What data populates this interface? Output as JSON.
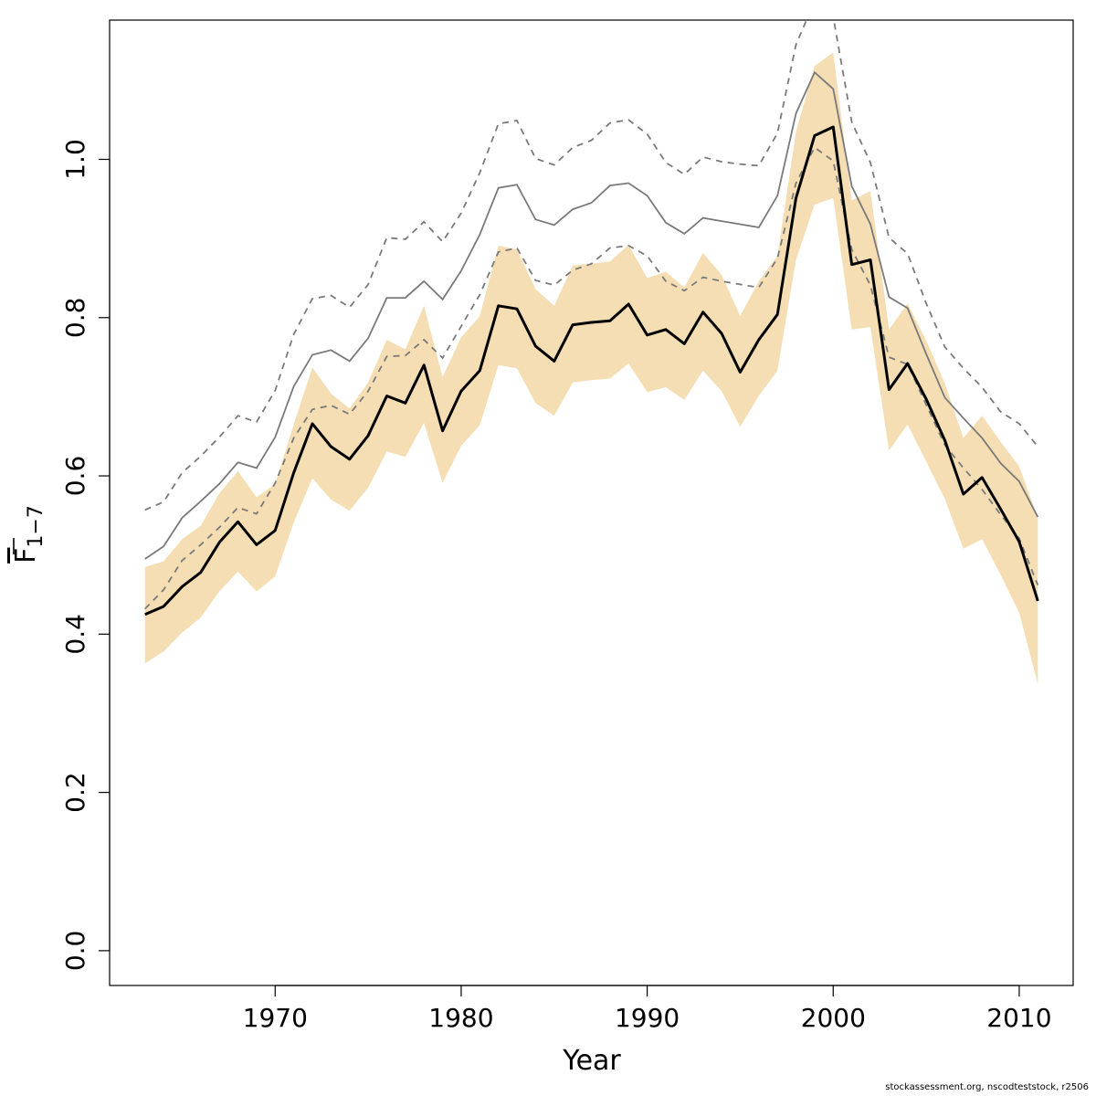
{
  "chart_data": {
    "type": "line",
    "xlabel": "Year",
    "ylabel_main": "F",
    "ylabel_sub": "1−7",
    "xlim": [
      1961.1,
      2012.9
    ],
    "ylim": [
      -0.044,
      1.176
    ],
    "x_ticks": [
      1970,
      1980,
      1990,
      2000,
      2010
    ],
    "y_ticks": [
      0.0,
      0.2,
      0.4,
      0.6,
      0.8,
      1.0
    ],
    "y_tick_labels": [
      "0.0",
      "0.2",
      "0.4",
      "0.6",
      "0.8",
      "1.0"
    ],
    "grid": false,
    "colors": {
      "band": "#f5deb3",
      "estimate": "#000000",
      "previous": "#7a7a7a",
      "previous_ci": "#7a7a7a"
    },
    "x": [
      1963,
      1964,
      1965,
      1966,
      1967,
      1968,
      1969,
      1970,
      1971,
      1972,
      1973,
      1974,
      1975,
      1976,
      1977,
      1978,
      1979,
      1980,
      1981,
      1982,
      1983,
      1984,
      1985,
      1986,
      1987,
      1988,
      1989,
      1990,
      1991,
      1992,
      1993,
      1994,
      1995,
      1996,
      1997,
      1998,
      1999,
      2000,
      2001,
      2002,
      2003,
      2004,
      2005,
      2006,
      2007,
      2008,
      2009,
      2010,
      2011
    ],
    "series": [
      {
        "role": "estimate",
        "values": [
          0.425,
          0.435,
          0.46,
          0.478,
          0.516,
          0.542,
          0.513,
          0.531,
          0.604,
          0.666,
          0.637,
          0.621,
          0.651,
          0.701,
          0.692,
          0.74,
          0.657,
          0.707,
          0.733,
          0.815,
          0.811,
          0.764,
          0.745,
          0.791,
          0.794,
          0.796,
          0.817,
          0.778,
          0.785,
          0.767,
          0.807,
          0.78,
          0.731,
          0.772,
          0.804,
          0.951,
          1.03,
          1.041,
          0.867,
          0.873,
          0.709,
          0.742,
          0.697,
          0.645,
          0.577,
          0.598,
          0.558,
          0.517,
          0.442
        ]
      },
      {
        "role": "band_upper",
        "values": [
          0.485,
          0.492,
          0.52,
          0.537,
          0.578,
          0.606,
          0.573,
          0.59,
          0.665,
          0.737,
          0.704,
          0.685,
          0.718,
          0.772,
          0.76,
          0.815,
          0.725,
          0.775,
          0.802,
          0.891,
          0.886,
          0.836,
          0.815,
          0.866,
          0.868,
          0.871,
          0.892,
          0.85,
          0.858,
          0.838,
          0.882,
          0.854,
          0.802,
          0.846,
          0.878,
          1.035,
          1.118,
          1.135,
          0.948,
          0.96,
          0.785,
          0.818,
          0.771,
          0.717,
          0.648,
          0.676,
          0.643,
          0.612,
          0.547
        ]
      },
      {
        "role": "band_lower",
        "values": [
          0.363,
          0.378,
          0.402,
          0.421,
          0.454,
          0.479,
          0.454,
          0.473,
          0.541,
          0.597,
          0.57,
          0.556,
          0.585,
          0.631,
          0.624,
          0.667,
          0.591,
          0.638,
          0.664,
          0.74,
          0.736,
          0.692,
          0.676,
          0.718,
          0.721,
          0.723,
          0.742,
          0.706,
          0.712,
          0.696,
          0.733,
          0.707,
          0.662,
          0.701,
          0.733,
          0.873,
          0.943,
          0.951,
          0.785,
          0.788,
          0.632,
          0.665,
          0.618,
          0.571,
          0.508,
          0.52,
          0.475,
          0.427,
          0.337
        ]
      },
      {
        "role": "previous",
        "values": [
          0.495,
          0.511,
          0.547,
          0.568,
          0.59,
          0.617,
          0.61,
          0.649,
          0.713,
          0.753,
          0.759,
          0.745,
          0.774,
          0.825,
          0.825,
          0.846,
          0.823,
          0.859,
          0.905,
          0.964,
          0.968,
          0.924,
          0.917,
          0.937,
          0.945,
          0.967,
          0.97,
          0.954,
          0.92,
          0.906,
          0.926,
          0.922,
          0.918,
          0.914,
          0.954,
          1.058,
          1.11,
          1.089,
          0.966,
          0.918,
          0.826,
          0.812,
          0.754,
          0.699,
          0.673,
          0.648,
          0.616,
          0.593,
          0.548
        ]
      },
      {
        "role": "previous_upper",
        "values": [
          0.557,
          0.567,
          0.604,
          0.625,
          0.649,
          0.676,
          0.668,
          0.708,
          0.779,
          0.824,
          0.828,
          0.813,
          0.842,
          0.901,
          0.899,
          0.921,
          0.896,
          0.932,
          0.983,
          1.045,
          1.049,
          1.001,
          0.993,
          1.015,
          1.024,
          1.046,
          1.05,
          1.032,
          0.996,
          0.981,
          1.003,
          0.997,
          0.994,
          0.992,
          1.033,
          1.145,
          1.2,
          1.18,
          1.047,
          0.996,
          0.901,
          0.881,
          0.818,
          0.763,
          0.736,
          0.712,
          0.681,
          0.666,
          0.637
        ]
      },
      {
        "role": "previous_lower",
        "values": [
          0.432,
          0.456,
          0.493,
          0.513,
          0.535,
          0.56,
          0.552,
          0.591,
          0.648,
          0.684,
          0.689,
          0.678,
          0.707,
          0.751,
          0.752,
          0.772,
          0.749,
          0.789,
          0.829,
          0.883,
          0.888,
          0.847,
          0.841,
          0.86,
          0.868,
          0.888,
          0.891,
          0.878,
          0.846,
          0.834,
          0.851,
          0.846,
          0.842,
          0.838,
          0.875,
          0.97,
          1.015,
          0.998,
          0.886,
          0.841,
          0.75,
          0.741,
          0.69,
          0.639,
          0.61,
          0.583,
          0.551,
          0.521,
          0.462
        ]
      }
    ]
  },
  "footer_text": "stockassessment.org, nscodteststock, r2506"
}
